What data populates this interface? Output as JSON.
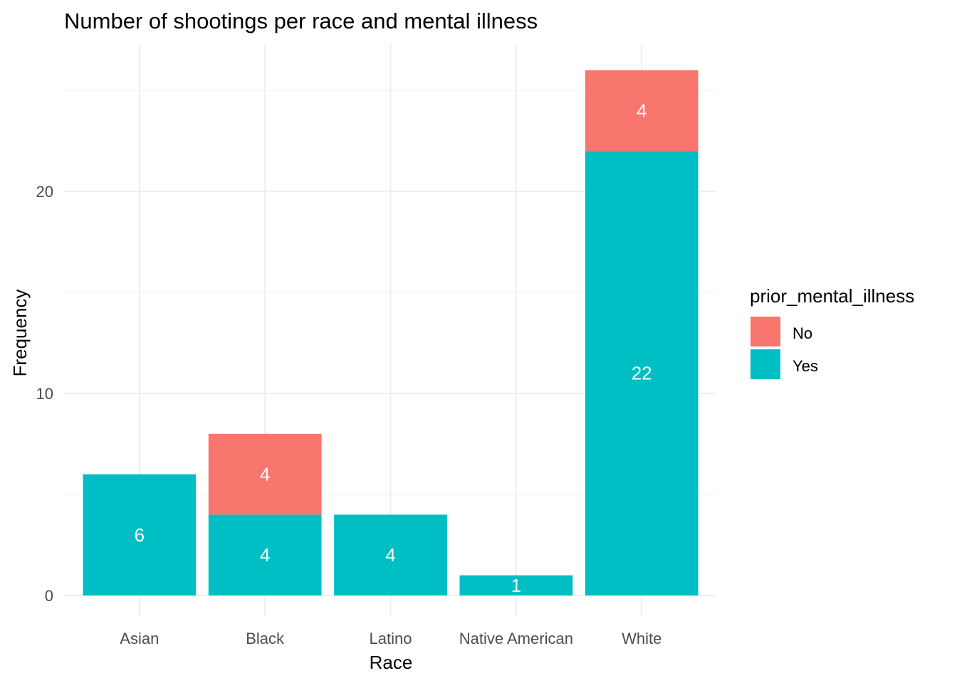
{
  "chart_data": {
    "type": "bar",
    "stacked": true,
    "title": "Number of shootings per race and mental illness",
    "xlabel": "Race",
    "ylabel": "Frequency",
    "categories": [
      "Asian",
      "Black",
      "Latino",
      "Native American",
      "White"
    ],
    "series": [
      {
        "name": "Yes",
        "color": "#00BFC4",
        "values": [
          6,
          4,
          4,
          1,
          22
        ]
      },
      {
        "name": "No",
        "color": "#F8766D",
        "values": [
          0,
          4,
          0,
          0,
          4
        ]
      }
    ],
    "ylim": [
      0,
      26
    ],
    "yticks": [
      0,
      10,
      20
    ],
    "yminor": [
      5,
      15,
      25
    ],
    "grid": true,
    "legend": {
      "title": "prior_mental_illness",
      "placement": "right",
      "entries": [
        {
          "label": "No",
          "color": "#F8766D"
        },
        {
          "label": "Yes",
          "color": "#00BFC4"
        }
      ]
    }
  }
}
